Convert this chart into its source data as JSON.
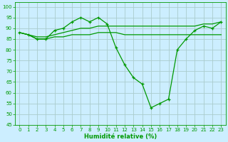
{
  "title": "",
  "xlabel": "Humidité relative (%)",
  "ylabel": "",
  "bg_color": "#cceeff",
  "grid_color": "#aacccc",
  "line_color": "#009900",
  "xlim": [
    -0.5,
    23.5
  ],
  "ylim": [
    45,
    102
  ],
  "yticks": [
    45,
    50,
    55,
    60,
    65,
    70,
    75,
    80,
    85,
    90,
    95,
    100
  ],
  "xticks": [
    0,
    1,
    2,
    3,
    4,
    5,
    6,
    7,
    8,
    9,
    10,
    11,
    12,
    13,
    14,
    15,
    16,
    17,
    18,
    19,
    20,
    21,
    22,
    23
  ],
  "main_line": [
    88,
    87,
    85,
    85,
    89,
    90,
    93,
    95,
    93,
    95,
    92,
    81,
    73,
    67,
    64,
    53,
    55,
    57,
    80,
    85,
    89,
    91,
    90,
    93
  ],
  "ref_line1": [
    88,
    87,
    85,
    85,
    86,
    86,
    87,
    87,
    87,
    88,
    88,
    88,
    87,
    87,
    87,
    87,
    87,
    87,
    87,
    87,
    87,
    87,
    87,
    87
  ],
  "ref_line2": [
    88,
    87,
    86,
    86,
    87,
    88,
    89,
    90,
    90,
    91,
    91,
    91,
    91,
    91,
    91,
    91,
    91,
    91,
    91,
    91,
    91,
    92,
    92,
    93
  ]
}
